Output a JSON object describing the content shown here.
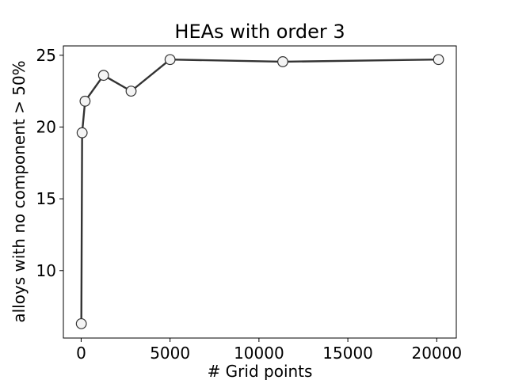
{
  "chart_data": {
    "type": "line",
    "title": "HEAs with order 3",
    "xlabel": "# Grid points",
    "ylabel": "alloys with no component > 50%",
    "x": [
      10,
      55,
      220,
      1260,
      2810,
      5000,
      11340,
      20100
    ],
    "y": [
      6.3,
      19.6,
      21.8,
      23.6,
      22.5,
      24.7,
      24.55,
      24.7
    ],
    "xlim": [
      -1000,
      21100
    ],
    "ylim": [
      5.3,
      25.65
    ],
    "xticks": [
      0,
      5000,
      10000,
      15000,
      20000
    ],
    "xtick_labels": [
      "0",
      "5000",
      "10000",
      "15000",
      "20000"
    ],
    "yticks": [
      10,
      15,
      20,
      25
    ],
    "ytick_labels": [
      "10",
      "15",
      "20",
      "25"
    ],
    "grid": false,
    "colors": {
      "line": "#333333",
      "marker_fill": "#f4f4f4",
      "marker_edge": "#333333"
    }
  }
}
